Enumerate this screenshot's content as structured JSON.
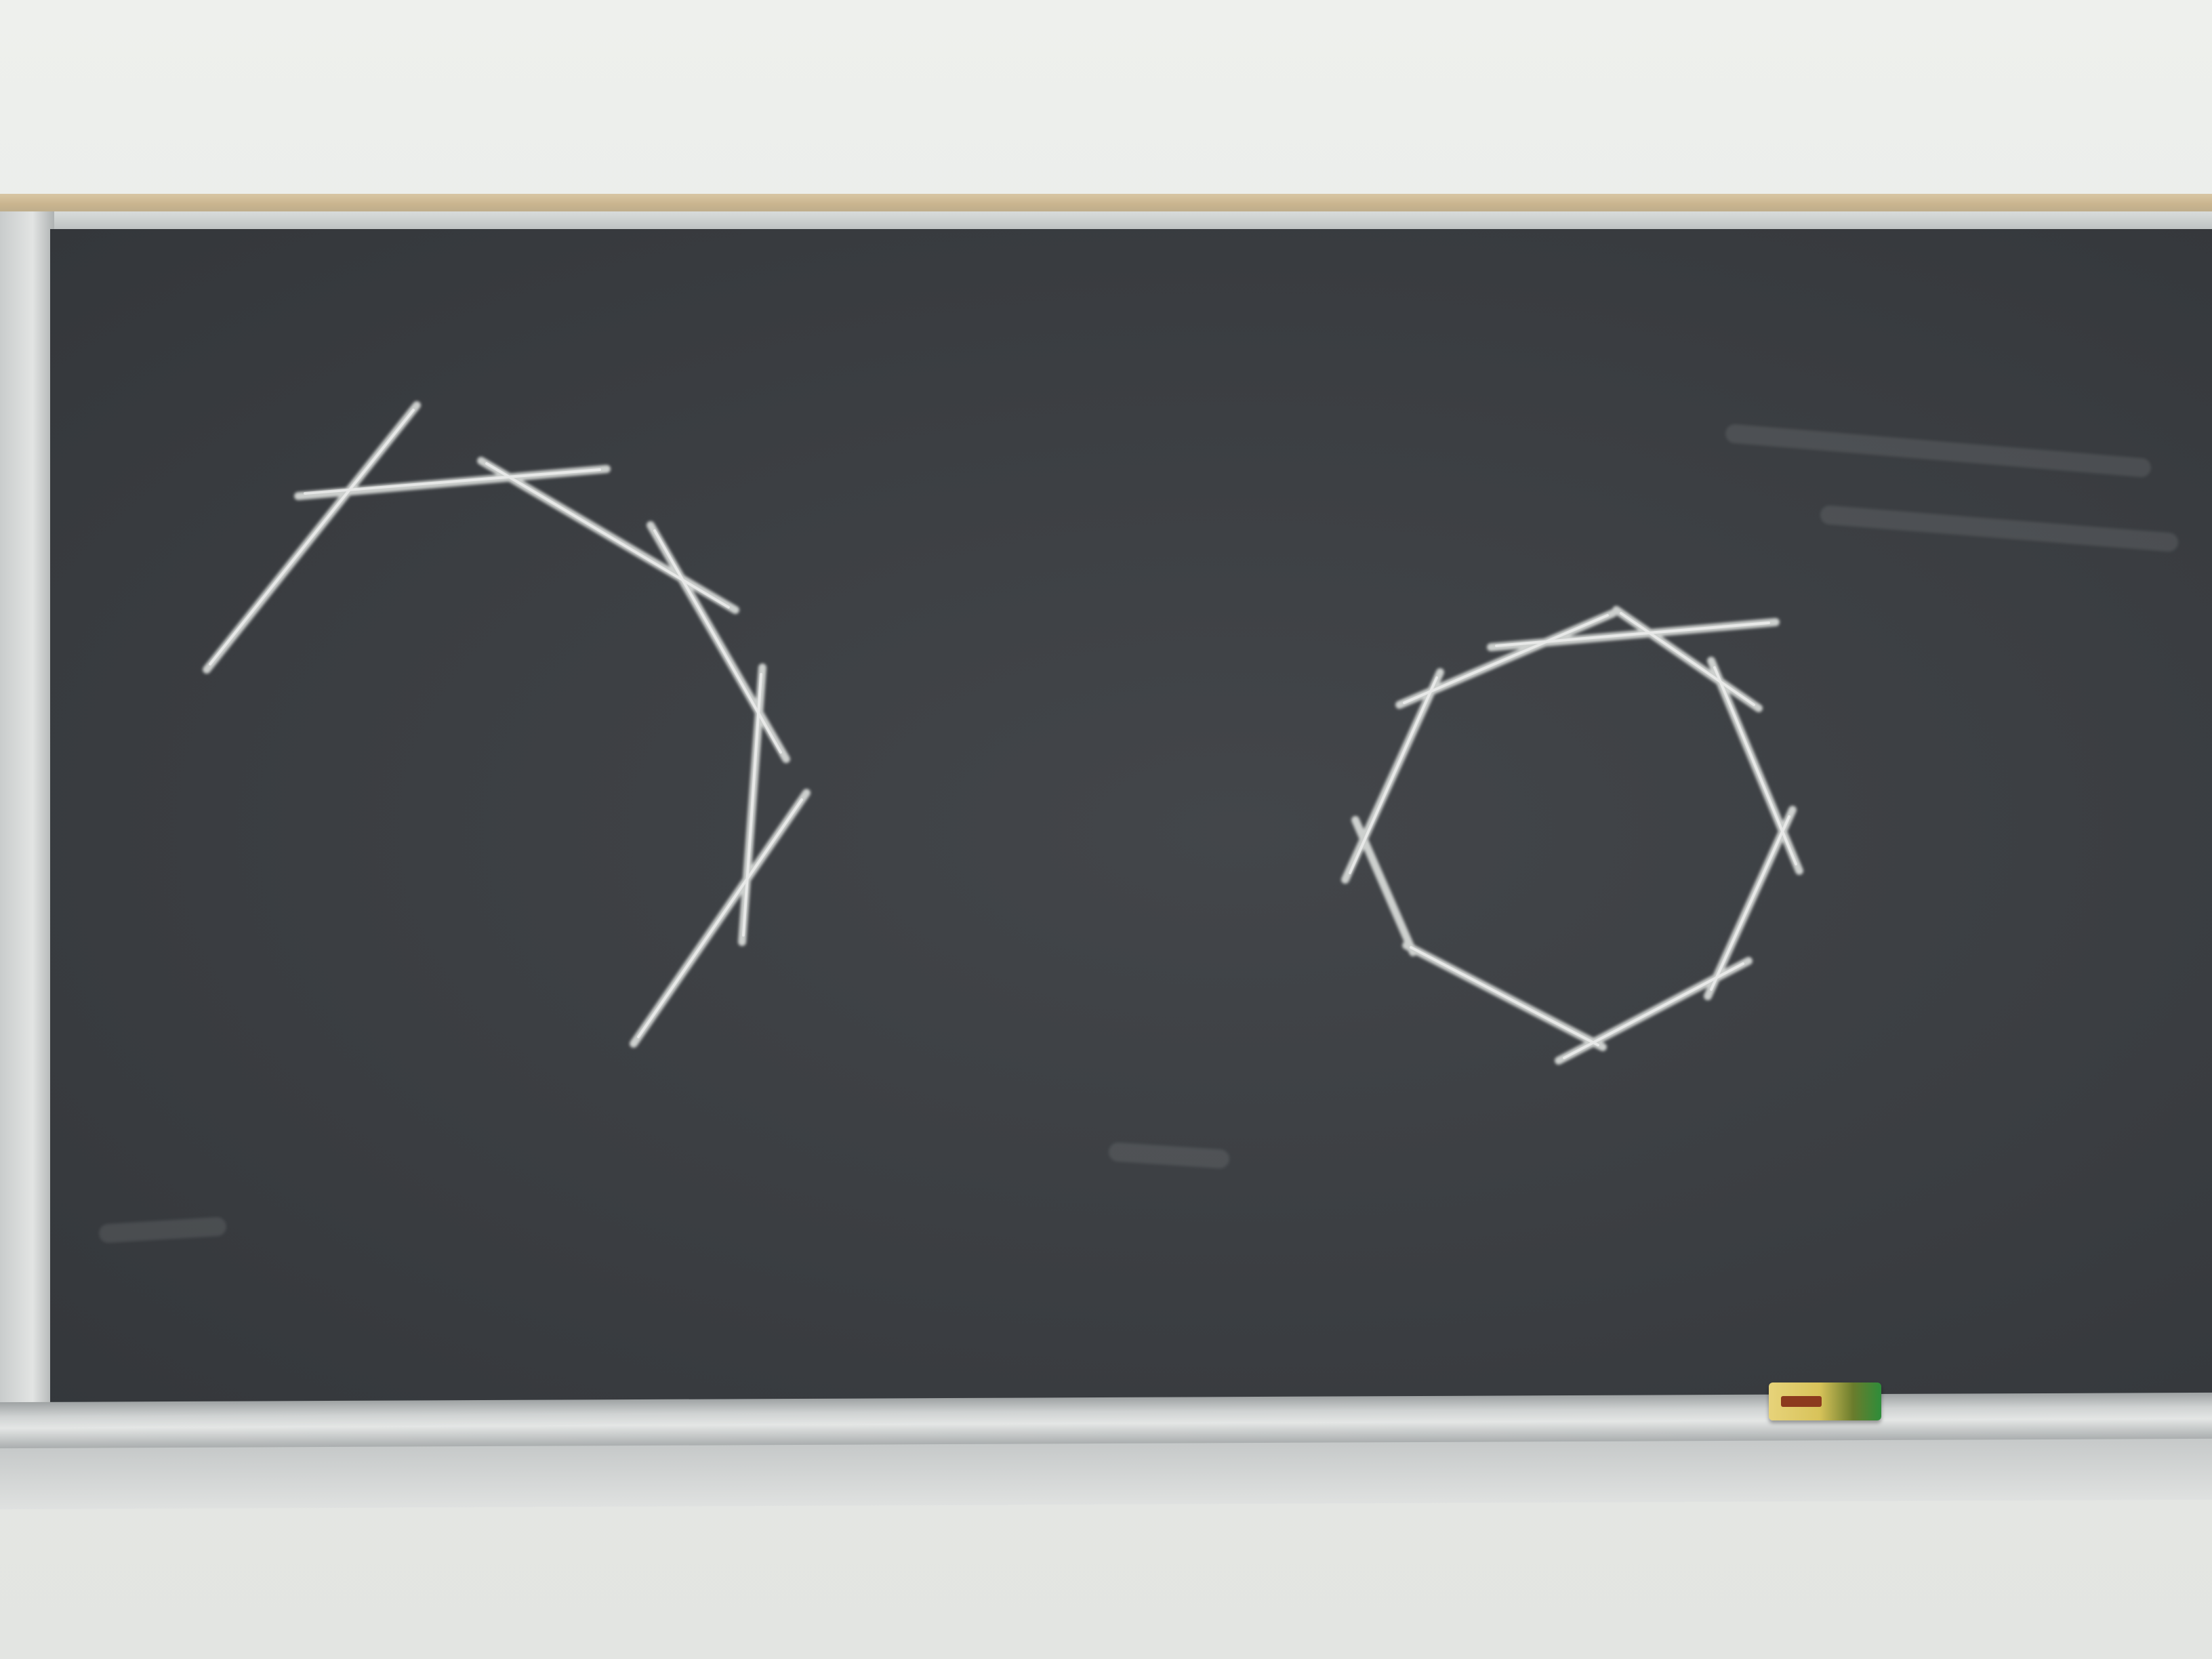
{
  "scene": {
    "subject": "chalkboard-with-two-polygon-drawings",
    "colors": {
      "wall": "#e8eae7",
      "board": "#3b3e42",
      "chalk": "#e9ece9",
      "trim": "#c9b48e",
      "frame": "#c6c9c9",
      "eraser_yellow": "#d8c35a",
      "eraser_green": "#2e8d3a"
    }
  }
}
